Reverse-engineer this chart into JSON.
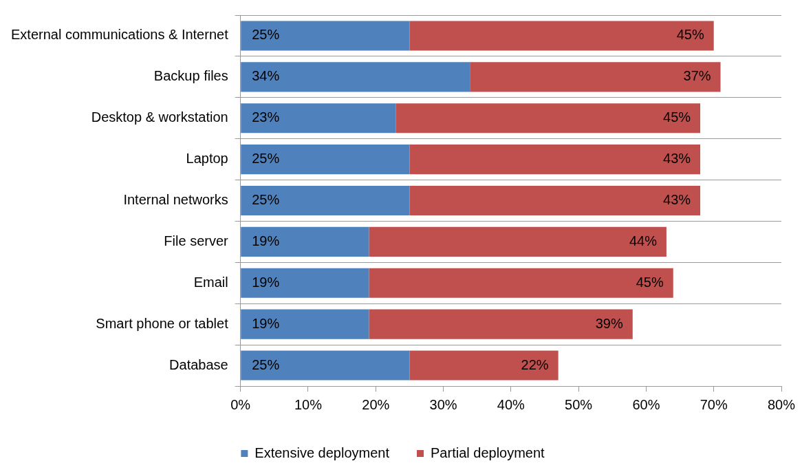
{
  "chart_data": {
    "type": "bar",
    "orientation": "horizontal",
    "stacked": true,
    "categories": [
      "External communications & Internet",
      "Backup files",
      "Desktop & workstation",
      "Laptop",
      "Internal networks",
      "File server",
      "Email",
      "Smart phone or tablet",
      "Database"
    ],
    "series": [
      {
        "name": "Extensive deployment",
        "color": "#4f81bd",
        "values": [
          25,
          34,
          23,
          25,
          25,
          19,
          19,
          19,
          25
        ],
        "value_labels": [
          "25%",
          "34%",
          "23%",
          "25%",
          "25%",
          "19%",
          "19%",
          "19%",
          "25%"
        ]
      },
      {
        "name": "Partial deployment",
        "color": "#c0504d",
        "values": [
          45,
          37,
          45,
          43,
          43,
          44,
          45,
          39,
          22
        ],
        "value_labels": [
          "45%",
          "37%",
          "45%",
          "43%",
          "43%",
          "44%",
          "45%",
          "39%",
          "22%"
        ]
      }
    ],
    "xlim": [
      0,
      80
    ],
    "xticks": [
      {
        "value": 0,
        "label": "0%"
      },
      {
        "value": 10,
        "label": "10%"
      },
      {
        "value": 20,
        "label": "20%"
      },
      {
        "value": 30,
        "label": "30%"
      },
      {
        "value": 40,
        "label": "40%"
      },
      {
        "value": 50,
        "label": "50%"
      },
      {
        "value": 60,
        "label": "60%"
      },
      {
        "value": 70,
        "label": "70%"
      },
      {
        "value": 80,
        "label": "80%"
      }
    ],
    "grid": "y",
    "legend": "bottom",
    "marker": "square"
  }
}
